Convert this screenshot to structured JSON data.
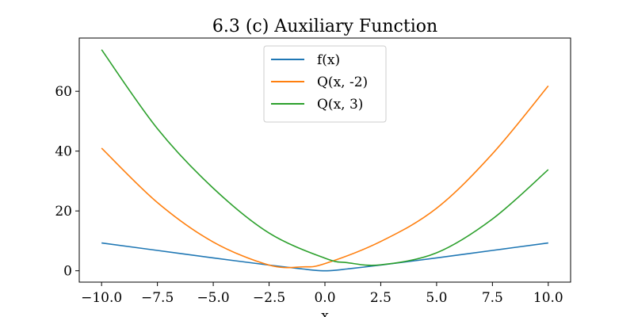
{
  "chart_data": {
    "type": "line",
    "title": "6.3 (c) Auxiliary Function",
    "xlabel": "x",
    "ylabel": "",
    "xlim": [
      -11.0,
      11.0
    ],
    "ylim": [
      -3.8,
      77.8
    ],
    "xticks": [
      -10.0,
      -7.5,
      -5.0,
      -2.5,
      0.0,
      2.5,
      5.0,
      7.5,
      10.0
    ],
    "xtick_labels": [
      "−10.0",
      "−7.5",
      "−5.0",
      "−2.5",
      "0.0",
      "2.5",
      "5.0",
      "7.5",
      "10.0"
    ],
    "yticks": [
      0,
      20,
      40,
      60
    ],
    "ytick_labels": [
      "0",
      "20",
      "40",
      "60"
    ],
    "grid": false,
    "legend_position": "top-center",
    "series": [
      {
        "name": "f(x)",
        "color": "#1f77b4",
        "x": [
          -10,
          -7.5,
          -5,
          -2.5,
          -1,
          -0.5,
          0,
          0.5,
          1,
          2.5,
          5,
          7.5,
          10
        ],
        "y": [
          9.3,
          6.8,
          4.3,
          1.9,
          0.6,
          0.2,
          0.0,
          0.2,
          0.6,
          1.9,
          4.3,
          6.8,
          9.3
        ]
      },
      {
        "name": "Q(x, -2)",
        "color": "#ff7f0e",
        "x": [
          -10,
          -7.5,
          -5,
          -2.5,
          -1,
          0,
          2.5,
          5,
          7.5,
          10
        ],
        "y": [
          41.0,
          22.8,
          9.6,
          1.9,
          1.3,
          2.4,
          9.8,
          20.9,
          39.1,
          61.8
        ]
      },
      {
        "name": "Q(x, 3)",
        "color": "#2ca02c",
        "x": [
          -10,
          -7.5,
          -5,
          -2.5,
          0,
          1,
          2.5,
          5,
          7.5,
          10
        ],
        "y": [
          73.9,
          47.5,
          27.6,
          12.6,
          4.2,
          2.7,
          2.0,
          6.0,
          17.3,
          33.8
        ]
      }
    ]
  }
}
